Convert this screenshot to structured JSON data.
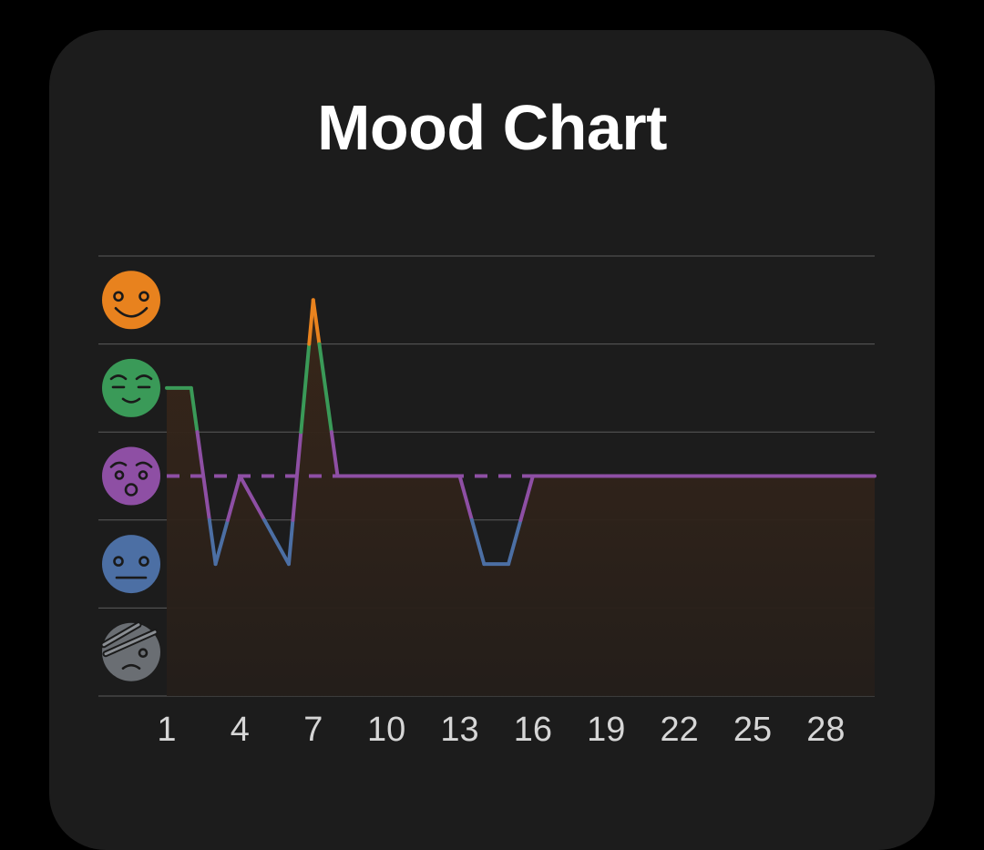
{
  "title": "Mood Chart",
  "moods": [
    {
      "level": 5,
      "icon": "laughing-face-icon",
      "color": "#e8821e"
    },
    {
      "level": 4,
      "icon": "relieved-face-icon",
      "color": "#3a9a58"
    },
    {
      "level": 3,
      "icon": "surprised-face-icon",
      "color": "#8e4fa4"
    },
    {
      "level": 2,
      "icon": "neutral-face-icon",
      "color": "#4c6fa4"
    },
    {
      "level": 1,
      "icon": "bandaged-sad-face-icon",
      "color": "#6a6e73"
    }
  ],
  "colors": {
    "background": "#000000",
    "card": "#1c1c1c",
    "grid": "#5a5a5a",
    "area_fill": "#33251c",
    "average_line": "#8e4fa4"
  },
  "chart_data": {
    "type": "line",
    "title": "Mood Chart",
    "xlabel": "",
    "ylabel": "",
    "x": [
      1,
      2,
      3,
      4,
      5,
      6,
      7,
      8,
      9,
      10,
      11,
      12,
      13,
      14,
      15,
      16,
      17,
      18,
      19,
      20,
      21,
      22,
      23,
      24,
      25,
      26,
      27,
      28,
      29,
      30
    ],
    "values": [
      4,
      4,
      2,
      3,
      2.5,
      2,
      5,
      3,
      3,
      3,
      3,
      3,
      3,
      2,
      2,
      3,
      3,
      3,
      3,
      3,
      3,
      3,
      3,
      3,
      3,
      3,
      3,
      3,
      3,
      3
    ],
    "xlim": [
      1,
      30
    ],
    "ylim": [
      0.5,
      5.5
    ],
    "x_ticks": [
      "1",
      "4",
      "7",
      "10",
      "13",
      "16",
      "19",
      "22",
      "25",
      "28"
    ],
    "average": 3,
    "grid": true,
    "area_fill": true
  }
}
